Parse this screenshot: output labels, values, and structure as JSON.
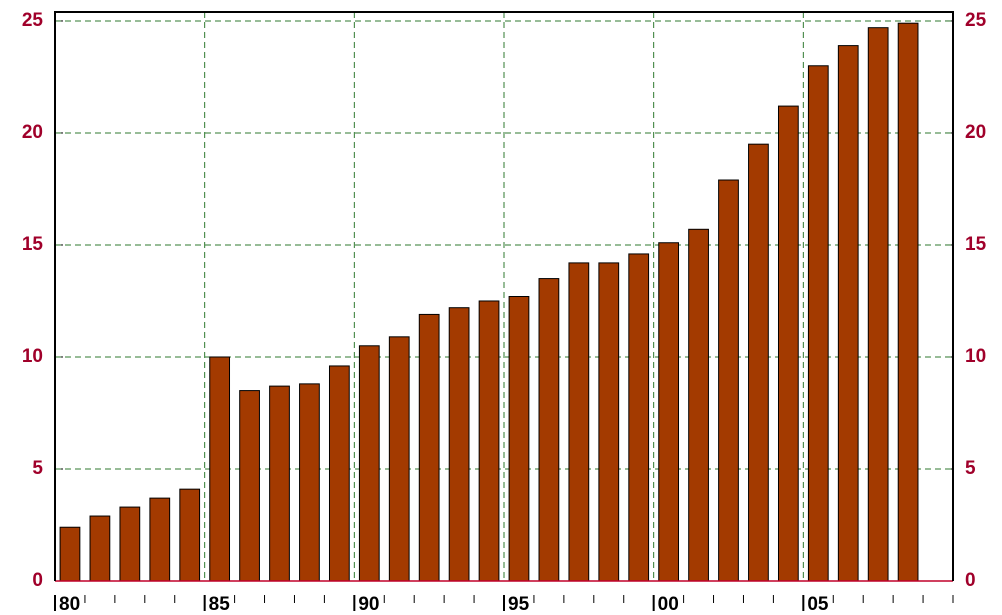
{
  "chart_data": {
    "type": "bar",
    "categories": [
      "80",
      null,
      null,
      null,
      null,
      "85",
      null,
      null,
      null,
      null,
      "90",
      null,
      null,
      null,
      null,
      "95",
      null,
      null,
      null,
      null,
      "00",
      null,
      null,
      null,
      null,
      "05",
      null,
      null,
      null,
      null
    ],
    "values": [
      2.4,
      2.9,
      3.3,
      3.7,
      4.1,
      10.0,
      8.5,
      8.7,
      8.8,
      9.6,
      10.5,
      10.9,
      11.9,
      12.2,
      12.5,
      12.7,
      13.5,
      14.2,
      14.2,
      14.6,
      15.1,
      15.7,
      17.9,
      19.5,
      21.2,
      23.0,
      23.9,
      24.7,
      24.9,
      null
    ],
    "color": "#a33a00",
    "ylim": [
      0,
      25.4
    ],
    "yticks": [
      0,
      5,
      10,
      15,
      20,
      25
    ],
    "grid": true
  }
}
